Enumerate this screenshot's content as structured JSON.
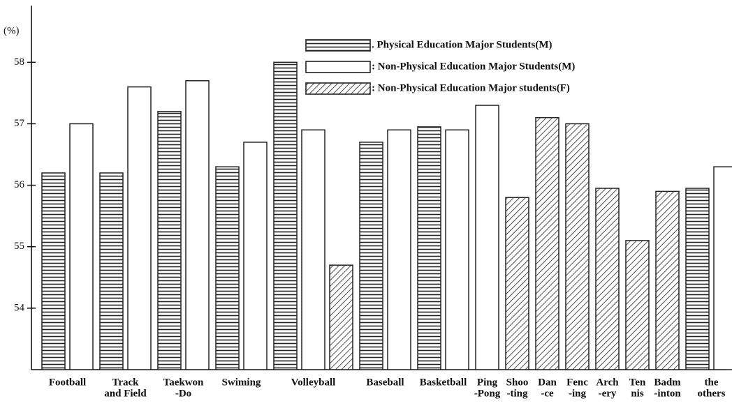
{
  "chart_data": {
    "type": "bar",
    "y_label": "(%)",
    "categories": [
      [
        "Football"
      ],
      [
        "Track",
        "and Field"
      ],
      [
        "Taekwon",
        "-Do"
      ],
      [
        "Swiming"
      ],
      [
        "Volleyball"
      ],
      [
        "Baseball"
      ],
      [
        "Basketball"
      ],
      [
        "Ping",
        "-Pong"
      ],
      [
        "Shoo",
        "-ting"
      ],
      [
        "Dan",
        "-ce"
      ],
      [
        "Fenc",
        "-ing"
      ],
      [
        "Arch",
        "-ery"
      ],
      [
        "Ten",
        "nis"
      ],
      [
        "Badm",
        "-inton"
      ],
      [
        "the",
        "others"
      ]
    ],
    "series": [
      {
        "name": ". Physical  Education Major Students(M)",
        "pattern": "horizontal-stripes",
        "color": "#222222",
        "values": [
          56.2,
          56.2,
          57.2,
          56.3,
          58.0,
          56.7,
          56.95,
          null,
          null,
          null,
          null,
          null,
          null,
          null,
          55.95
        ]
      },
      {
        "name": ": Non-Physical Education Major Students(M)",
        "pattern": "none",
        "color": "#222222",
        "values": [
          57.0,
          57.6,
          57.7,
          56.7,
          56.9,
          56.9,
          56.9,
          57.3,
          null,
          null,
          null,
          null,
          null,
          null,
          56.3
        ]
      },
      {
        "name": ": Non-Physical Education  Major students(F)",
        "pattern": "diagonal-hatch",
        "color": "#222222",
        "values": [
          null,
          null,
          null,
          null,
          54.7,
          null,
          null,
          null,
          55.8,
          57.1,
          57.0,
          55.95,
          55.1,
          55.9,
          null
        ]
      }
    ],
    "ylim": [
      53,
      58.9
    ],
    "yticks": [
      54,
      55,
      56,
      57,
      58
    ],
    "grid": false
  }
}
